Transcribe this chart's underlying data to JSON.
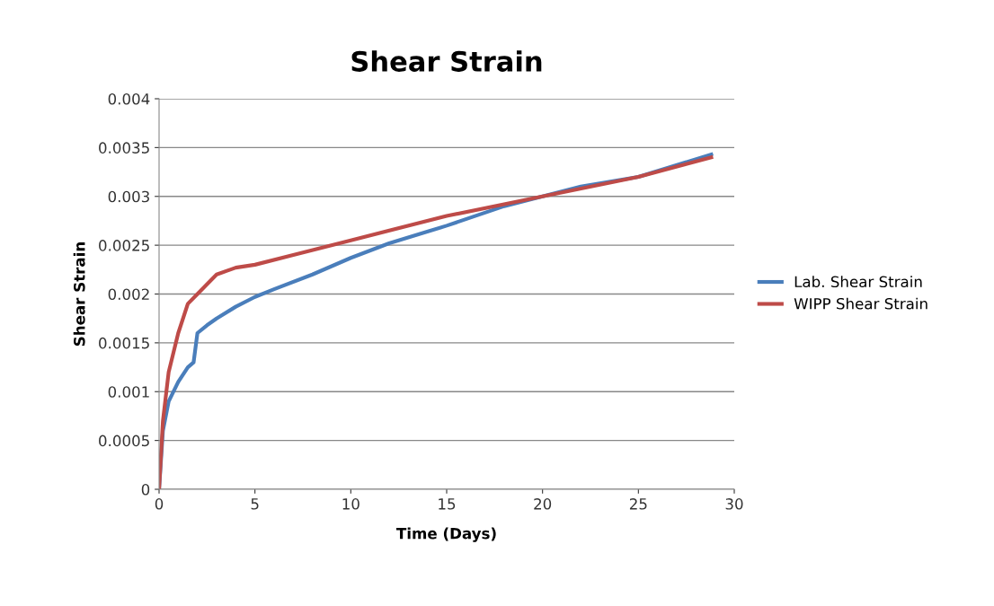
{
  "chart_data": {
    "type": "line",
    "title": "Shear Strain",
    "xlabel": "Time (Days)",
    "ylabel": "Shear Strain",
    "xlim": [
      0,
      30
    ],
    "xticks": [
      0,
      5,
      10,
      15,
      20,
      25,
      30
    ],
    "ylim": [
      0,
      0.004
    ],
    "yticks": [
      {
        "value": 0,
        "label": "0"
      },
      {
        "value": 0.0005,
        "label": "0.0005"
      },
      {
        "value": 0.001,
        "label": "0.001"
      },
      {
        "value": 0.0015,
        "label": "0.0015"
      },
      {
        "value": 0.002,
        "label": "0.002"
      },
      {
        "value": 0.0025,
        "label": "0.0025"
      },
      {
        "value": 0.003,
        "label": "0.003"
      },
      {
        "value": 0.0035,
        "label": "0.0035"
      },
      {
        "value": 0.004,
        "label": "0.004"
      }
    ],
    "grid": "y",
    "legend": "right",
    "marker": "none",
    "line_style": "solid",
    "series": [
      {
        "name": "Lab. Shear Strain",
        "color": "#4a7ebb",
        "x": [
          0,
          0.2,
          0.5,
          1,
          1.5,
          1.8,
          2,
          2.5,
          3,
          4,
          5,
          6,
          8,
          10,
          12,
          15,
          18,
          20,
          22,
          25,
          28.8
        ],
        "values": [
          0,
          0.0006,
          0.0009,
          0.0011,
          0.00125,
          0.0013,
          0.0016,
          0.00168,
          0.00175,
          0.00187,
          0.00197,
          0.00205,
          0.0022,
          0.00237,
          0.00252,
          0.0027,
          0.0029,
          0.003,
          0.0031,
          0.0032,
          0.00343
        ]
      },
      {
        "name": "WIPP Shear Strain",
        "color": "#be4b48",
        "x": [
          0,
          0.2,
          0.5,
          1,
          1.5,
          2,
          3,
          4,
          5,
          7,
          10,
          15,
          20,
          25,
          28.8
        ],
        "values": [
          0,
          0.0007,
          0.0012,
          0.0016,
          0.0019,
          0.002,
          0.0022,
          0.00227,
          0.0023,
          0.0024,
          0.00255,
          0.0028,
          0.003,
          0.0032,
          0.0034
        ]
      }
    ]
  }
}
